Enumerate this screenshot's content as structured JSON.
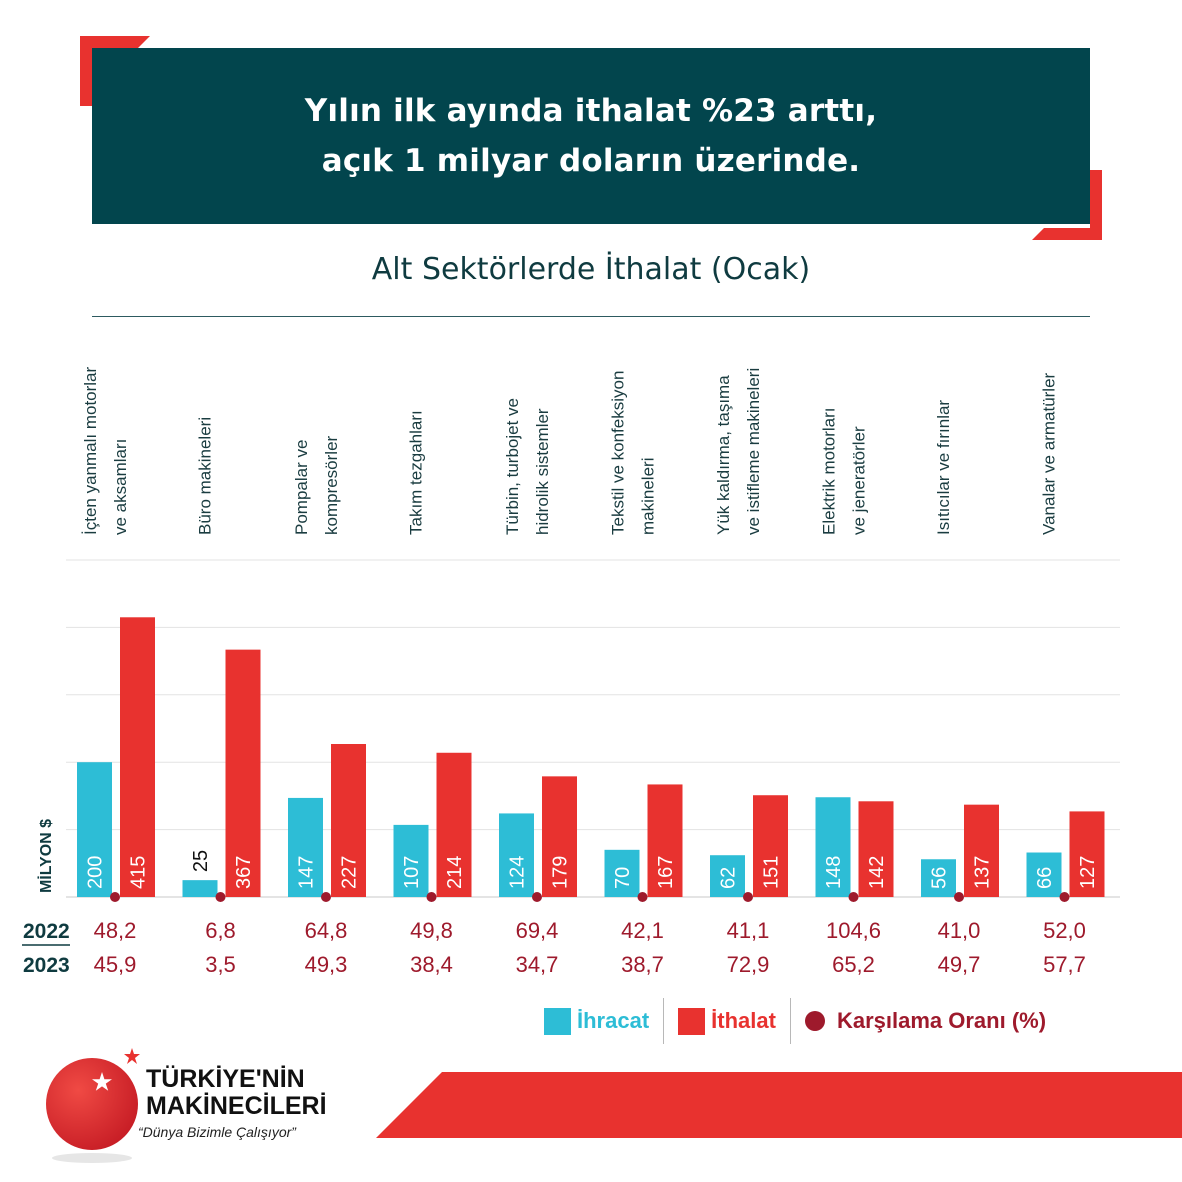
{
  "header": {
    "line1": "Yılın ilk ayında ithalat %23 arttı,",
    "line2": "açık 1 milyar doların üzerinde."
  },
  "chart_title": "Alt Sektörlerde İthalat (Ocak)",
  "colors": {
    "header_bg": "#02454d",
    "ihracat": "#2dbdd6",
    "ithalat": "#e8322f",
    "ratio": "#9e1a2c",
    "year_label": "#0f3b40"
  },
  "chart_data": {
    "type": "bar",
    "ylabel": "MİLYON $",
    "ylim": [
      0,
      500
    ],
    "grid": true,
    "categories": [
      [
        "İçten yanmalı motorlar",
        "ve aksamları"
      ],
      [
        "Büro makineleri"
      ],
      [
        "Pompalar ve",
        "kompresörler"
      ],
      [
        "Takım tezgahları"
      ],
      [
        "Türbin, turbojet ve",
        "hidrolik sistemler"
      ],
      [
        "Tekstil ve konfeksiyon",
        "makineleri"
      ],
      [
        "Yük kaldırma, taşıma",
        "ve istifleme makineleri"
      ],
      [
        "Elektrik motorları",
        "ve jeneratörler"
      ],
      [
        "Isıtıcılar ve fırınlar"
      ],
      [
        "Vanalar ve armatürler"
      ]
    ],
    "series": [
      {
        "name": "İhracat",
        "values": [
          200,
          25,
          147,
          107,
          124,
          70,
          62,
          148,
          56,
          66
        ]
      },
      {
        "name": "İthalat",
        "values": [
          415,
          367,
          227,
          214,
          179,
          167,
          151,
          142,
          137,
          127
        ]
      }
    ],
    "ratio_label": "Karşılama Oranı (%)",
    "ratio_rows": [
      {
        "year": "2022",
        "values": [
          "48,2",
          "6,8",
          "64,8",
          "49,8",
          "69,4",
          "42,1",
          "41,1",
          "104,6",
          "41,0",
          "52,0"
        ]
      },
      {
        "year": "2023",
        "values": [
          "45,9",
          "3,5",
          "49,3",
          "38,4",
          "34,7",
          "38,7",
          "72,9",
          "65,2",
          "49,7",
          "57,7"
        ]
      }
    ]
  },
  "legend": {
    "ihracat": "İhracat",
    "ithalat": "İthalat",
    "ratio": "Karşılama Oranı (%)"
  },
  "footer": {
    "brand_line1": "TÜRKİYE'NİN",
    "brand_line2": "MAKİNECİLERİ",
    "slogan": "“Dünya Bizimle Çalışıyor”"
  }
}
